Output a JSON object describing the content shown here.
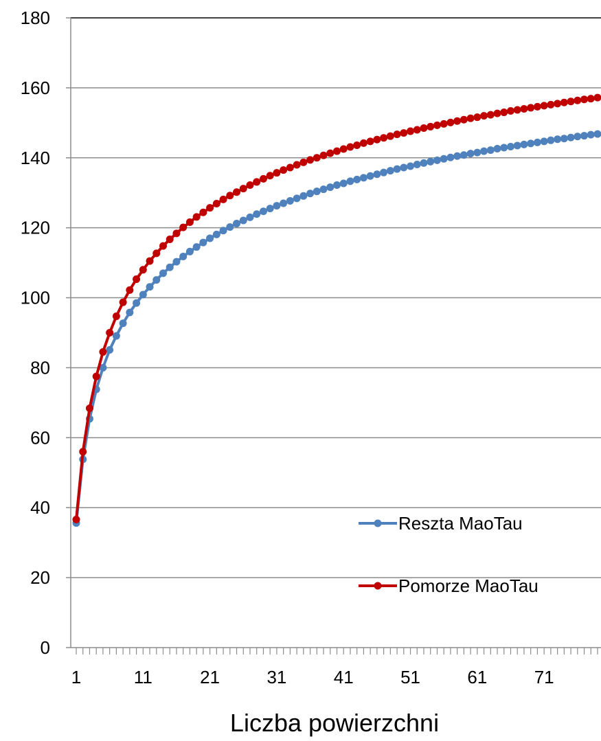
{
  "chart_data": {
    "type": "line",
    "title": "",
    "xlabel": "Liczba powierzchni",
    "ylabel": "",
    "ylim": [
      0,
      180
    ],
    "yticks": [
      0,
      20,
      40,
      60,
      80,
      100,
      120,
      140,
      160,
      180
    ],
    "xlim": [
      1,
      79
    ],
    "xticks": [
      1,
      11,
      21,
      31,
      41,
      51,
      61,
      71
    ],
    "grid": "horizontal",
    "legend_position": "bottom-right",
    "x": [
      1,
      2,
      3,
      4,
      5,
      6,
      7,
      8,
      9,
      10,
      11,
      12,
      13,
      14,
      15,
      16,
      17,
      18,
      19,
      20,
      21,
      22,
      23,
      24,
      25,
      26,
      27,
      28,
      29,
      30,
      31,
      32,
      33,
      34,
      35,
      36,
      37,
      38,
      39,
      40,
      41,
      42,
      43,
      44,
      45,
      46,
      47,
      48,
      49,
      50,
      51,
      52,
      53,
      54,
      55,
      56,
      57,
      58,
      59,
      60,
      61,
      62,
      63,
      64,
      65,
      66,
      67,
      68,
      69,
      70,
      71,
      72,
      73,
      74,
      75,
      76,
      77,
      78,
      79
    ],
    "series": [
      {
        "name": "Reszta MaoTau",
        "color": "#4F81BD",
        "values": [
          35.6,
          53.8,
          65.4,
          73.8,
          80.0,
          85.1,
          89.1,
          92.7,
          95.8,
          98.5,
          100.9,
          103.1,
          105.1,
          107.0,
          108.7,
          110.3,
          111.8,
          113.2,
          114.5,
          115.8,
          117.0,
          118.1,
          119.2,
          120.2,
          121.2,
          122.1,
          123.0,
          123.9,
          124.7,
          125.5,
          126.3,
          127.0,
          127.7,
          128.4,
          129.1,
          129.8,
          130.4,
          131.0,
          131.6,
          132.2,
          132.7,
          133.3,
          133.8,
          134.3,
          134.8,
          135.3,
          135.8,
          136.3,
          136.8,
          137.2,
          137.6,
          138.1,
          138.5,
          138.9,
          139.3,
          139.7,
          140.1,
          140.5,
          140.8,
          141.2,
          141.5,
          141.9,
          142.2,
          142.6,
          142.9,
          143.2,
          143.5,
          143.8,
          144.1,
          144.4,
          144.7,
          145.0,
          145.3,
          145.5,
          145.8,
          146.1,
          146.3,
          146.6,
          146.8
        ]
      },
      {
        "name": "Pomorze MaoTau",
        "color": "#C00000",
        "values": [
          36.6,
          56.0,
          68.4,
          77.5,
          84.5,
          90.0,
          94.7,
          98.7,
          102.2,
          105.3,
          108.0,
          110.5,
          112.7,
          114.8,
          116.7,
          118.4,
          120.1,
          121.6,
          123.1,
          124.4,
          125.7,
          126.9,
          128.1,
          129.2,
          130.2,
          131.2,
          132.2,
          133.1,
          134.0,
          134.9,
          135.7,
          136.5,
          137.2,
          138.0,
          138.7,
          139.4,
          140.0,
          140.7,
          141.3,
          141.9,
          142.5,
          143.1,
          143.6,
          144.2,
          144.7,
          145.2,
          145.7,
          146.2,
          146.7,
          147.1,
          147.6,
          148.0,
          148.5,
          148.9,
          149.3,
          149.7,
          150.1,
          150.5,
          150.9,
          151.3,
          151.6,
          152.0,
          152.3,
          152.7,
          153.0,
          153.4,
          153.7,
          154.0,
          154.3,
          154.6,
          154.9,
          155.2,
          155.5,
          155.8,
          156.1,
          156.4,
          156.7,
          156.9,
          157.2
        ]
      }
    ]
  }
}
